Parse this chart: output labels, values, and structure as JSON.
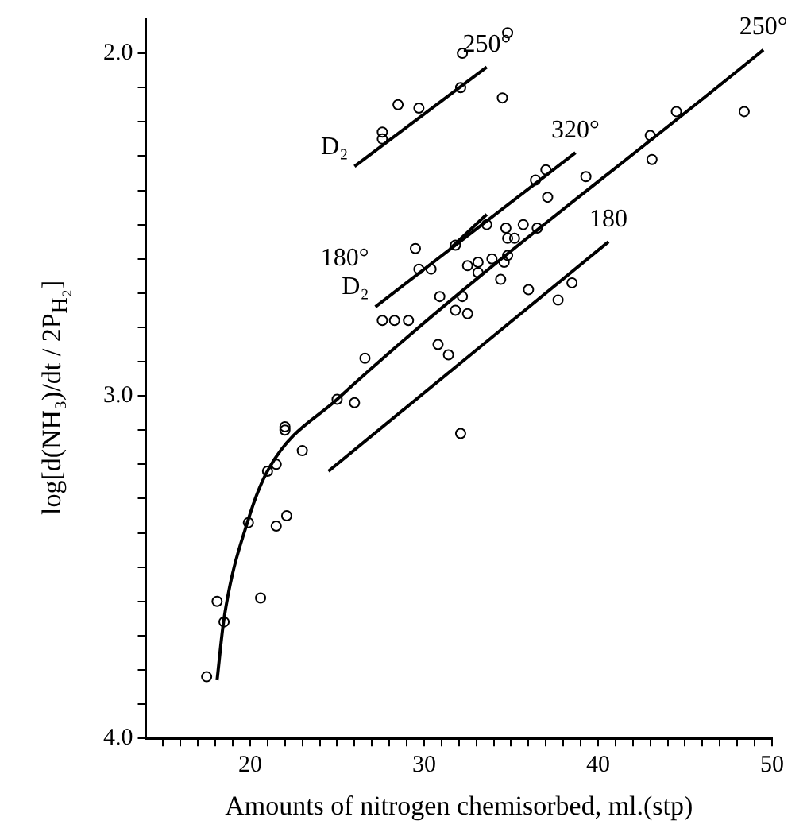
{
  "chart_data": {
    "type": "scatter",
    "xlabel": "Amounts of nitrogen chemisorbed, ml.(stp)",
    "ylabel": "log[d(NH₃)/dt / 2P$_{H₂}$]",
    "xlim": [
      14,
      50
    ],
    "ylim": [
      4.0,
      1.9
    ],
    "xticks": [
      {
        "value": 15,
        "label": null
      },
      {
        "value": 16,
        "label": null
      },
      {
        "value": 17,
        "label": null
      },
      {
        "value": 18,
        "label": null
      },
      {
        "value": 19,
        "label": null
      },
      20,
      {
        "value": 21,
        "label": null
      },
      {
        "value": 22,
        "label": null
      },
      {
        "value": 23,
        "label": null
      },
      {
        "value": 24,
        "label": null
      },
      {
        "value": 25,
        "label": null
      },
      {
        "value": 26,
        "label": null
      },
      {
        "value": 27,
        "label": null
      },
      {
        "value": 28,
        "label": null
      },
      {
        "value": 29,
        "label": null
      },
      30,
      {
        "value": 31,
        "label": null
      },
      {
        "value": 32,
        "label": null
      },
      {
        "value": 33,
        "label": null
      },
      {
        "value": 34,
        "label": null
      },
      {
        "value": 35,
        "label": null
      },
      {
        "value": 36,
        "label": null
      },
      {
        "value": 37,
        "label": null
      },
      {
        "value": 38,
        "label": null
      },
      {
        "value": 39,
        "label": null
      },
      40,
      {
        "value": 41,
        "label": null
      },
      {
        "value": 42,
        "label": null
      },
      {
        "value": 43,
        "label": null
      },
      {
        "value": 44,
        "label": null
      },
      {
        "value": 45,
        "label": null
      },
      {
        "value": 46,
        "label": null
      },
      {
        "value": 47,
        "label": null
      },
      {
        "value": 48,
        "label": null
      },
      {
        "value": 49,
        "label": null
      },
      50
    ],
    "yticks": [
      {
        "value": 2.0,
        "label": "2.0"
      },
      {
        "value": 2.1,
        "label": null
      },
      {
        "value": 2.2,
        "label": null
      },
      {
        "value": 2.3,
        "label": null
      },
      {
        "value": 2.4,
        "label": null
      },
      {
        "value": 2.5,
        "label": null
      },
      {
        "value": 2.6,
        "label": null
      },
      {
        "value": 2.7,
        "label": null
      },
      {
        "value": 2.8,
        "label": null
      },
      {
        "value": 2.9,
        "label": null
      },
      {
        "value": 3.0,
        "label": "3.0"
      },
      {
        "value": 3.1,
        "label": null
      },
      {
        "value": 3.2,
        "label": null
      },
      {
        "value": 3.3,
        "label": null
      },
      {
        "value": 3.4,
        "label": null
      },
      {
        "value": 3.5,
        "label": null
      },
      {
        "value": 3.6,
        "label": null
      },
      {
        "value": 3.7,
        "label": null
      },
      {
        "value": 3.8,
        "label": null
      },
      {
        "value": 3.9,
        "label": null
      },
      {
        "value": 4.0,
        "label": "4.0"
      }
    ],
    "marker": "circle",
    "grid": false,
    "legend": false,
    "series": [
      {
        "color": "#000000",
        "x": [
          34.8,
          32.2,
          32.1,
          34.5,
          28.5,
          29.7,
          27.6,
          27.6,
          48.4,
          44.5,
          43.0,
          43.1,
          39.3,
          36.4,
          37.0,
          37.1,
          34.7,
          35.7,
          36.5,
          33.6,
          34.8,
          35.2,
          33.1,
          33.9,
          34.6,
          34.8,
          32.5,
          33.1,
          34.4,
          36.0,
          37.7,
          38.5,
          30.9,
          32.2,
          31.8,
          32.5,
          27.6,
          28.3,
          29.1,
          26.6,
          30.8,
          31.4,
          25.0,
          26.0,
          22.0,
          22.0,
          23.0,
          21.5,
          21.0,
          32.1,
          19.9,
          21.5,
          22.1,
          20.6,
          18.1,
          18.5,
          17.5,
          29.7,
          30.4,
          29.5,
          31.8
        ],
        "values": [
          1.94,
          2.0,
          2.1,
          2.13,
          2.15,
          2.16,
          2.23,
          2.25,
          2.17,
          2.17,
          2.24,
          2.31,
          2.36,
          2.37,
          2.34,
          2.42,
          2.51,
          2.5,
          2.51,
          2.5,
          2.54,
          2.54,
          2.61,
          2.6,
          2.61,
          2.59,
          2.62,
          2.64,
          2.66,
          2.69,
          2.72,
          2.67,
          2.71,
          2.71,
          2.75,
          2.76,
          2.78,
          2.78,
          2.78,
          2.89,
          2.85,
          2.88,
          3.01,
          3.02,
          3.09,
          3.1,
          3.16,
          3.2,
          3.22,
          3.11,
          3.37,
          3.38,
          3.35,
          3.59,
          3.6,
          3.66,
          3.82,
          2.63,
          2.63,
          2.57,
          2.56
        ]
      },
      {
        "type": "line",
        "marker": "none",
        "color": "#000000",
        "x": [
          18.1,
          18.5,
          19.9,
          21.1,
          25.0,
          49.5
        ],
        "values": [
          3.83,
          3.65,
          3.36,
          3.21,
          3.01,
          1.99
        ]
      },
      {
        "type": "line",
        "marker": "none",
        "color": "#000000",
        "x": [
          27.2,
          38.7
        ],
        "values": [
          2.74,
          2.29
        ]
      },
      {
        "type": "line",
        "marker": "none",
        "color": "#000000",
        "x": [
          31.5,
          33.6
        ],
        "values": [
          2.57,
          2.47
        ]
      },
      {
        "type": "line",
        "marker": "none",
        "color": "#000000",
        "x": [
          24.5,
          40.6
        ],
        "values": [
          3.22,
          2.55
        ]
      },
      {
        "type": "line",
        "marker": "none",
        "color": "#000000",
        "x": [
          26.0,
          33.6
        ],
        "values": [
          2.33,
          2.04
        ]
      }
    ],
    "annotations": [
      {
        "text": "D₂",
        "x": 26.0,
        "y": 2.33
      },
      {
        "text": "250°",
        "x": 33.6,
        "y": 2.04
      },
      {
        "text": "250°",
        "x": 49.5,
        "y": 1.99
      },
      {
        "text": "320°",
        "x": 38.7,
        "y": 2.29
      },
      {
        "text": "180°",
        "x": 27.2,
        "y": 2.74
      },
      {
        "text": "D₂",
        "x": 27.2,
        "y": 2.74
      },
      {
        "text": "180",
        "x": 40.6,
        "y": 2.55
      }
    ]
  }
}
